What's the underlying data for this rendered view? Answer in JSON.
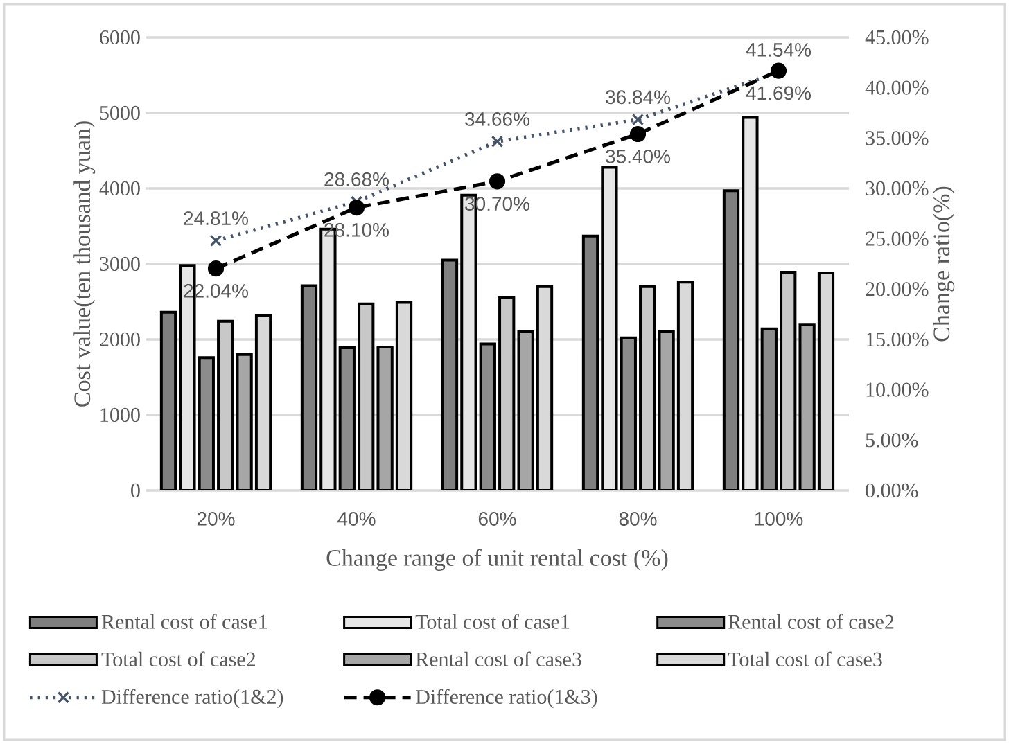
{
  "chart_data": {
    "type": "bar",
    "xlabel": "Change range of unit rental cost (%)",
    "ylabel": "Cost value(ten thousand yuan)",
    "y2label": "Change ratio(%)",
    "categories": [
      "20%",
      "40%",
      "60%",
      "80%",
      "100%"
    ],
    "ylim": [
      0,
      6000
    ],
    "yticks": [
      0,
      1000,
      2000,
      3000,
      4000,
      5000,
      6000
    ],
    "y2lim": [
      0,
      45
    ],
    "y2ticks": [
      {
        "value": 0,
        "label": "0.00%"
      },
      {
        "value": 5,
        "label": "5.00%"
      },
      {
        "value": 10,
        "label": "10.00%"
      },
      {
        "value": 15,
        "label": "15.00%"
      },
      {
        "value": 20,
        "label": "20.00%"
      },
      {
        "value": 25,
        "label": "25.00%"
      },
      {
        "value": 30,
        "label": "30.00%"
      },
      {
        "value": 35,
        "label": "35.00%"
      },
      {
        "value": 40,
        "label": "40.00%"
      },
      {
        "value": 45,
        "label": "45.00%"
      }
    ],
    "grid": "y",
    "legend": "bottom",
    "series": [
      {
        "name": "Rental cost of case1",
        "color": "#7f7f7f",
        "values": [
          2360,
          2710,
          3050,
          3370,
          3970
        ]
      },
      {
        "name": "Total cost of case1",
        "color": "#e6e6e6",
        "values": [
          2980,
          3460,
          3910,
          4280,
          4940
        ]
      },
      {
        "name": "Rental cost of case2",
        "color": "#8c8c8c",
        "values": [
          1760,
          1890,
          1940,
          2020,
          2140
        ]
      },
      {
        "name": "Total cost of case2",
        "color": "#c8c8c8",
        "values": [
          2240,
          2470,
          2560,
          2700,
          2890
        ]
      },
      {
        "name": "Rental cost of case3",
        "color": "#a6a6a6",
        "values": [
          1800,
          1900,
          2100,
          2110,
          2200
        ]
      },
      {
        "name": "Total cost of case3",
        "color": "#d9d9d9",
        "values": [
          2320,
          2490,
          2700,
          2760,
          2880
        ]
      },
      {
        "name": "Difference ratio(1&2)",
        "type": "line",
        "axis": "y2",
        "color": "#44546a",
        "marker": "cross",
        "line_style": "dotted",
        "values": [
          24.81,
          28.68,
          34.66,
          36.84,
          41.54
        ],
        "value_labels": [
          "24.81%",
          "28.68%",
          "34.66%",
          "36.84%",
          "41.54%"
        ]
      },
      {
        "name": "Difference ratio(1&3)",
        "type": "line",
        "axis": "y2",
        "color": "#000000",
        "marker": "circle",
        "line_style": "dashed",
        "values": [
          22.04,
          28.1,
          30.7,
          35.4,
          41.69
        ],
        "value_labels": [
          "22.04%",
          "28.10%",
          "30.70%",
          "35.40%",
          "41.69%"
        ]
      }
    ]
  }
}
